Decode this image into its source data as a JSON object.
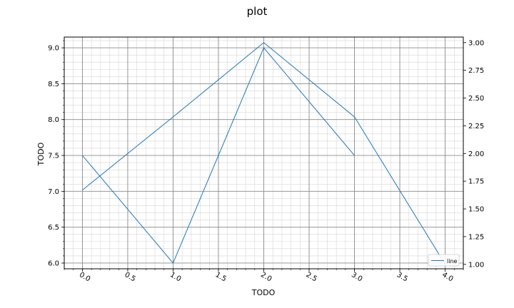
{
  "chart_data": {
    "type": "line",
    "title": "plot",
    "xlabel": "TODO",
    "ylabel": "TODO",
    "xlim": [
      -0.2,
      4.2
    ],
    "ylim": [
      5.92,
      9.15
    ],
    "y2lim": [
      0.96,
      3.05
    ],
    "x_ticks": [
      0.0,
      0.5,
      1.0,
      1.5,
      2.0,
      2.5,
      3.0,
      3.5,
      4.0
    ],
    "x_tick_labels": [
      "0.0",
      "0.5",
      "1.0",
      "1.5",
      "2.0",
      "2.5",
      "3.0",
      "3.5",
      "4.0"
    ],
    "y_ticks": [
      6.0,
      6.5,
      7.0,
      7.5,
      8.0,
      8.5,
      9.0
    ],
    "y_tick_labels": [
      "6.0",
      "6.5",
      "7.0",
      "7.5",
      "8.0",
      "8.5",
      "9.0"
    ],
    "y2_ticks": [
      1.0,
      1.25,
      1.5,
      1.75,
      2.0,
      2.25,
      2.5,
      2.75,
      3.0
    ],
    "y2_tick_labels": [
      "1.00",
      "1.25",
      "1.50",
      "1.75",
      "2.00",
      "2.25",
      "2.50",
      "2.75",
      "3.00"
    ],
    "grid": true,
    "minor_grid": true,
    "legend_position": "bottom-right",
    "series": [
      {
        "name": "",
        "axis": "left",
        "color": "#1f77b4",
        "x": [
          0,
          1,
          2,
          3
        ],
        "y": [
          7.5,
          6.0,
          9.0,
          7.5
        ]
      },
      {
        "name": "line",
        "axis": "right",
        "color": "#1f77b4",
        "x": [
          0,
          1,
          2,
          3,
          4
        ],
        "y": [
          1.67,
          2.33,
          3.0,
          2.33,
          1.0
        ]
      }
    ]
  }
}
